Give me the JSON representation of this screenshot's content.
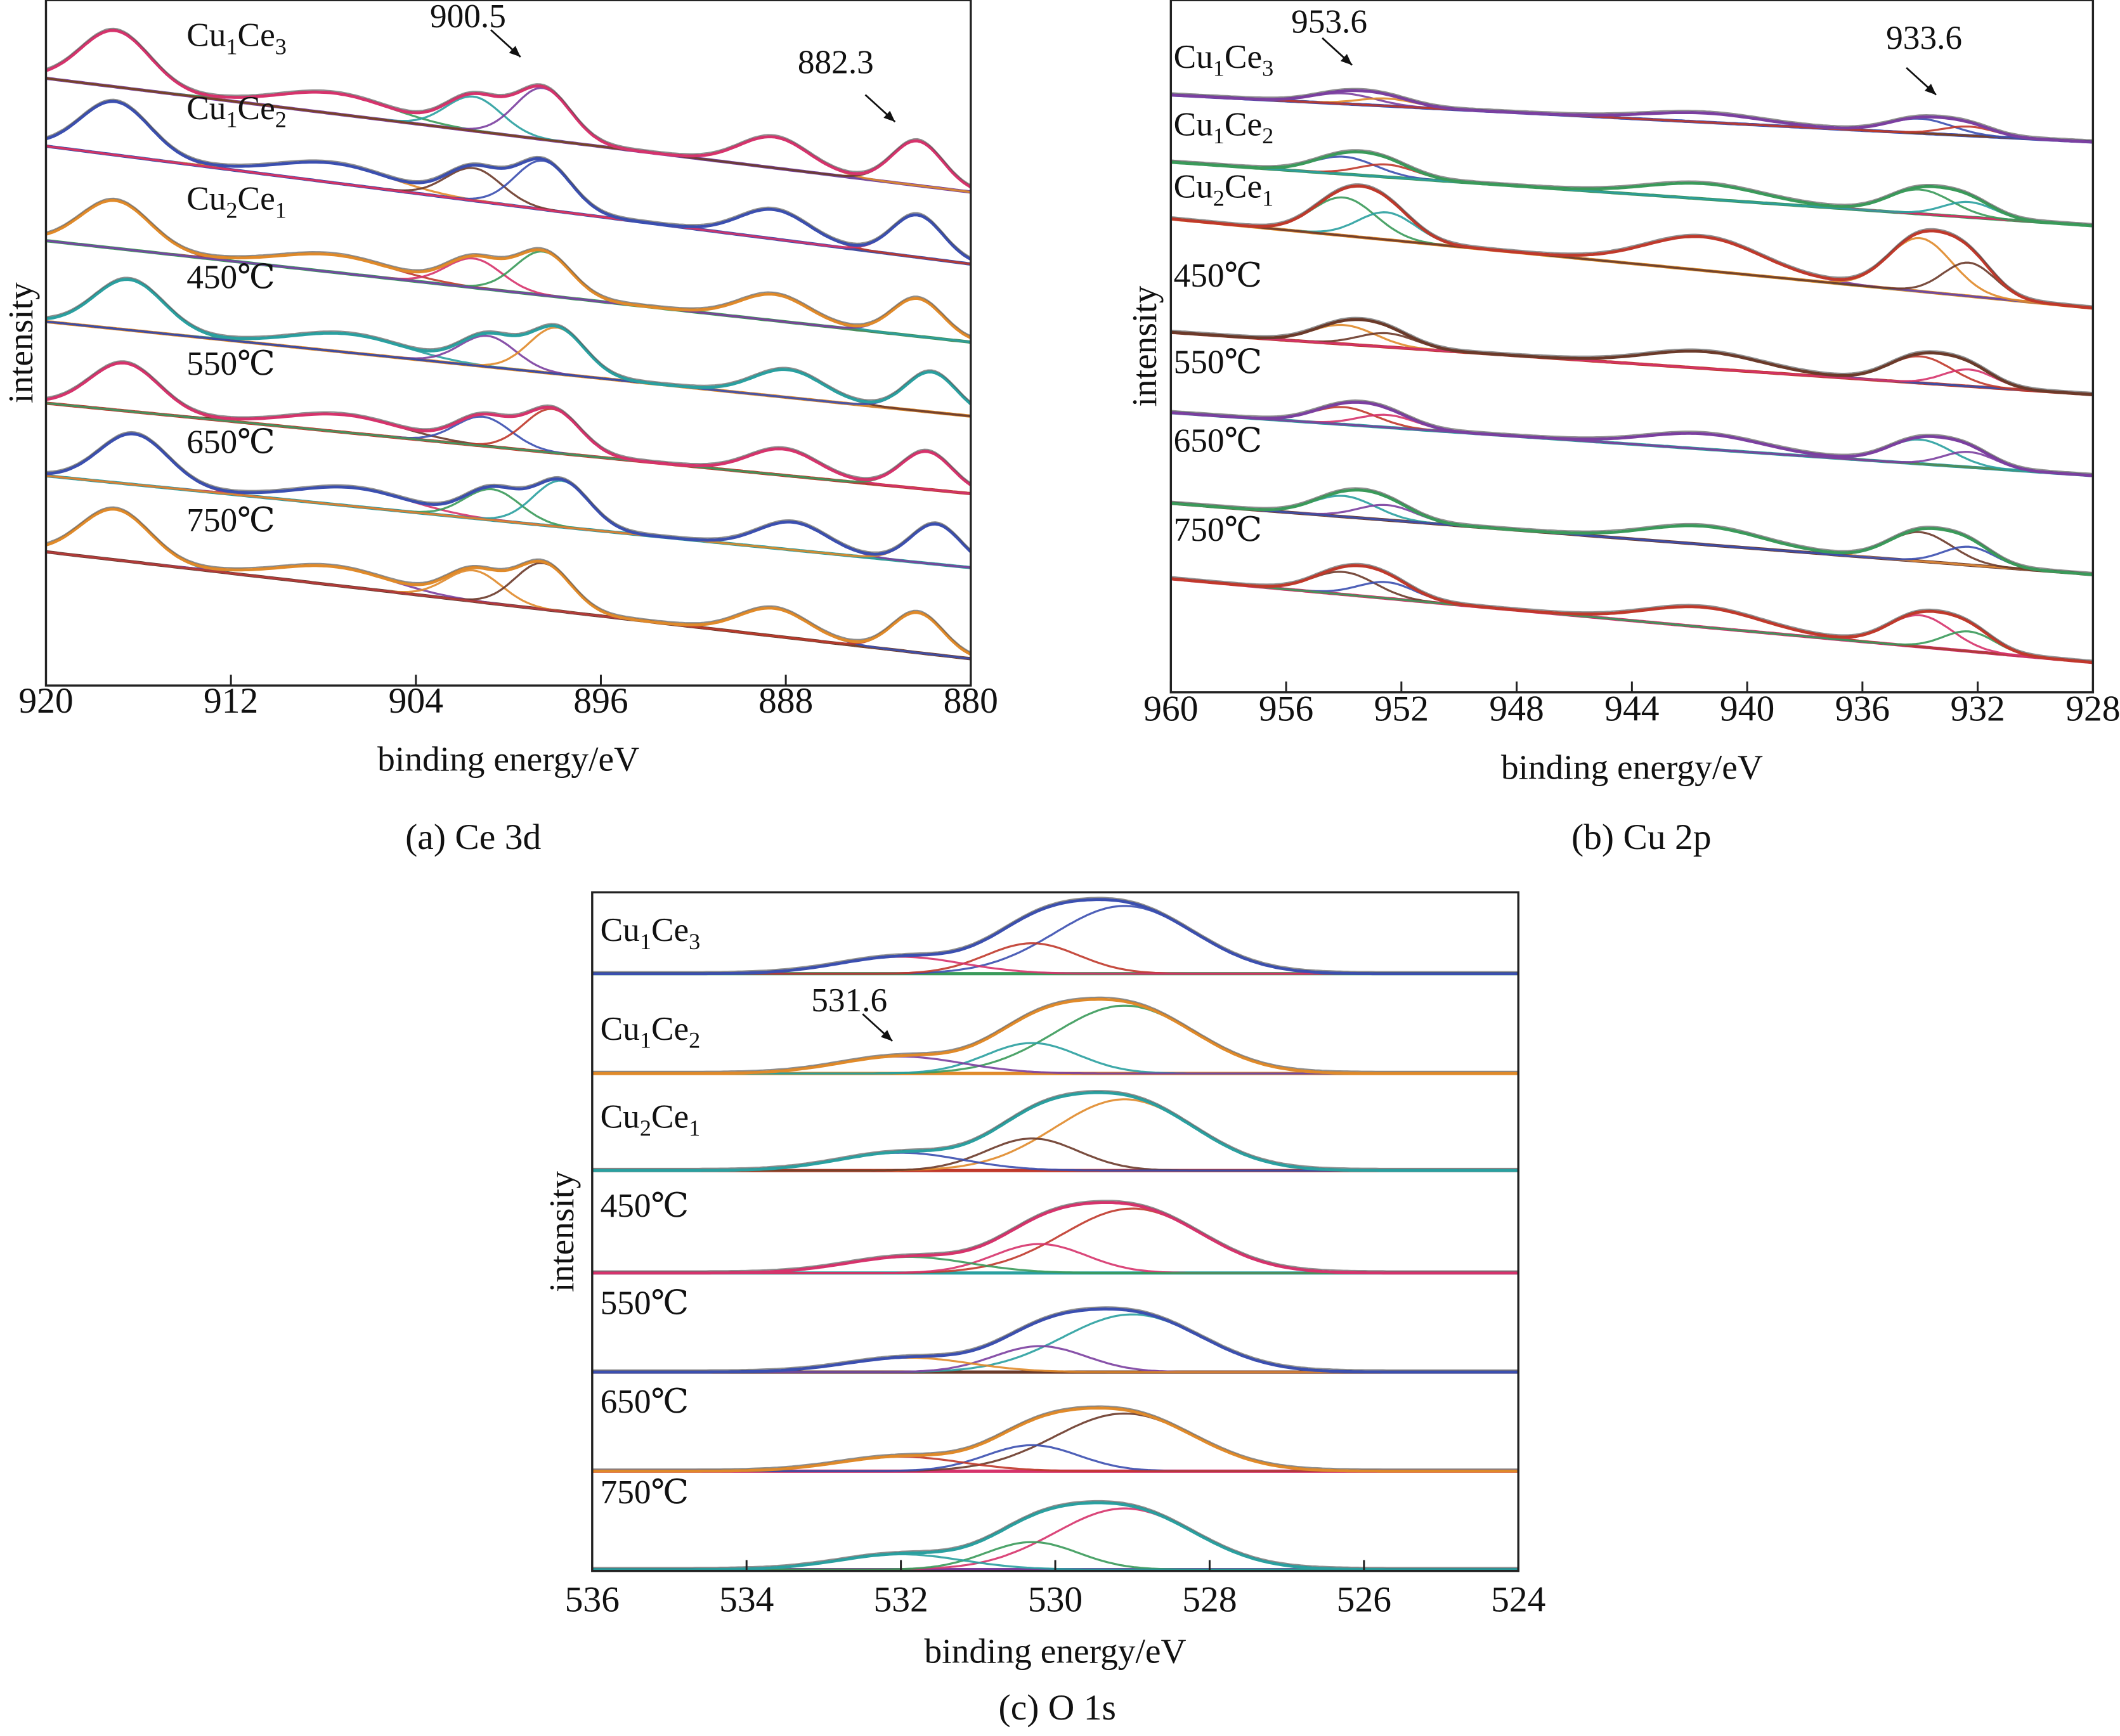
{
  "palette": [
    "#d6336c",
    "#7b3fa0",
    "#3b4fb0",
    "#3a9a5a",
    "#e08a2a",
    "#c0392b",
    "#2aa0a0",
    "#6b3a2a"
  ],
  "chart_data": [
    {
      "id": "a",
      "type": "line",
      "caption": "(a) Ce 3d",
      "xlabel": "binding energy/eV",
      "ylabel": "intensity",
      "xlim": [
        920,
        880
      ],
      "ylim": [
        0,
        100
      ],
      "xticks": [
        920,
        912,
        904,
        896,
        888,
        880
      ],
      "annotations": [
        {
          "text": "900.5",
          "x": 900.5
        },
        {
          "text": "882.3",
          "x": 882.3
        }
      ],
      "components": [
        [
          917,
          8.2,
          1.5
        ],
        [
          907.5,
          3,
          2.4
        ],
        [
          901.5,
          5,
          1.2
        ],
        [
          898.5,
          7.5,
          1.2
        ],
        [
          888.5,
          4.5,
          1.5
        ],
        [
          882.3,
          6.5,
          1.1
        ]
      ],
      "series": [
        {
          "name": "Cu1Ce3",
          "baseline": [
            88.6,
            72.0
          ],
          "scale": 1.0,
          "shift": 0
        },
        {
          "name": "Cu1Ce2",
          "baseline": [
            78.7,
            61.5
          ],
          "scale": 0.95,
          "shift": 0
        },
        {
          "name": "Cu2Ce1",
          "baseline": [
            64.9,
            50.1
          ],
          "scale": 0.85,
          "shift": 0
        },
        {
          "name": "450℃",
          "baseline": [
            53.1,
            39.3
          ],
          "scale": 0.9,
          "shift": -0.6
        },
        {
          "name": "550℃",
          "baseline": [
            41.2,
            28.0
          ],
          "scale": 0.85,
          "shift": -0.4
        },
        {
          "name": "650℃",
          "baseline": [
            30.6,
            17.2
          ],
          "scale": 0.9,
          "shift": -0.8
        },
        {
          "name": "750℃",
          "baseline": [
            19.5,
            3.9
          ],
          "scale": 0.9,
          "shift": 0
        }
      ]
    },
    {
      "id": "b",
      "type": "line",
      "caption": "(b) Cu 2p",
      "xlabel": "binding energy/eV",
      "ylabel": "intensity",
      "xlim": [
        960,
        928
      ],
      "ylim": [
        0,
        100
      ],
      "xticks": [
        960,
        956,
        952,
        948,
        944,
        940,
        936,
        932,
        928
      ],
      "annotations": [
        {
          "text": "953.6",
          "x": 953.6
        },
        {
          "text": "933.6",
          "x": 933.6
        }
      ],
      "components": [
        [
          954,
          2.5,
          1.1
        ],
        [
          952.5,
          1.8,
          1.0
        ],
        [
          941.5,
          2.2,
          2.0
        ],
        [
          934,
          3.5,
          1.1
        ],
        [
          932.3,
          2.2,
          0.9
        ]
      ],
      "series": [
        {
          "name": "Cu1Ce3",
          "baseline": [
            86.3,
            79.5
          ],
          "scale": 0.6,
          "shift": 0
        },
        {
          "name": "Cu1Ce2",
          "baseline": [
            76.6,
            67.4
          ],
          "scale": 1.0,
          "shift": 0
        },
        {
          "name": "Cu2Ce1",
          "baseline": [
            68.4,
            55.5
          ],
          "scale": 2.2,
          "shift": 0
        },
        {
          "name": "450℃",
          "baseline": [
            52.0,
            43.0
          ],
          "scale": 1.1,
          "shift": 0
        },
        {
          "name": "550℃",
          "baseline": [
            40.4,
            31.3
          ],
          "scale": 1.0,
          "shift": 0
        },
        {
          "name": "650℃",
          "baseline": [
            27.3,
            17.0
          ],
          "scale": 1.2,
          "shift": 0
        },
        {
          "name": "750℃",
          "baseline": [
            16.4,
            4.3
          ],
          "scale": 1.3,
          "shift": 0
        }
      ]
    },
    {
      "id": "c",
      "type": "line",
      "caption": "(c) O 1s",
      "xlabel": "binding energy/eV",
      "ylabel": "intensity",
      "xlim": [
        536,
        524
      ],
      "ylim": [
        0,
        100
      ],
      "xticks": [
        536,
        534,
        532,
        530,
        528,
        526,
        524
      ],
      "annotations": [
        {
          "text": "531.6",
          "x": 531.6
        }
      ],
      "components": [
        [
          529.1,
          10,
          0.9
        ],
        [
          530.3,
          4.5,
          0.6
        ],
        [
          532.0,
          2.5,
          0.8
        ]
      ],
      "series": [
        {
          "name": "Cu1Ce3",
          "baseline": [
            88.0,
            88.0
          ],
          "scale": 1.0,
          "shift": 0
        },
        {
          "name": "Cu1Ce2",
          "baseline": [
            73.3,
            73.3
          ],
          "scale": 1.0,
          "shift": 0
        },
        {
          "name": "Cu2Ce1",
          "baseline": [
            59.0,
            59.0
          ],
          "scale": 1.05,
          "shift": 0
        },
        {
          "name": "450℃",
          "baseline": [
            43.9,
            43.9
          ],
          "scale": 0.95,
          "shift": -0.1
        },
        {
          "name": "550℃",
          "baseline": [
            29.3,
            29.3
          ],
          "scale": 0.85,
          "shift": -0.1
        },
        {
          "name": "650℃",
          "baseline": [
            14.7,
            14.7
          ],
          "scale": 0.85,
          "shift": 0
        },
        {
          "name": "750℃",
          "baseline": [
            0.2,
            0.2
          ],
          "scale": 0.9,
          "shift": 0
        }
      ]
    }
  ]
}
